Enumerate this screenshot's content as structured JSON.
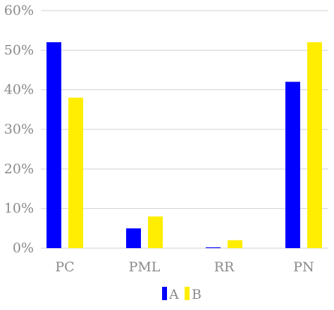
{
  "chart_data": {
    "type": "bar",
    "categories": [
      "PC",
      "PML",
      "RR",
      "PN"
    ],
    "series": [
      {
        "name": "A",
        "values": [
          52,
          5,
          0.2,
          42
        ],
        "color": "#0000ff"
      },
      {
        "name": "B",
        "values": [
          38,
          8,
          2,
          52
        ],
        "color": "#ffee00"
      }
    ],
    "yticks": [
      0,
      10,
      20,
      30,
      40,
      50,
      60
    ],
    "ytick_labels": [
      "0%",
      "10%",
      "20%",
      "30%",
      "40%",
      "50%",
      "60%"
    ],
    "ylim": [
      0,
      60
    ],
    "grid": true,
    "legend": "bottom-center",
    "title": "",
    "xlabel": "",
    "ylabel": ""
  }
}
